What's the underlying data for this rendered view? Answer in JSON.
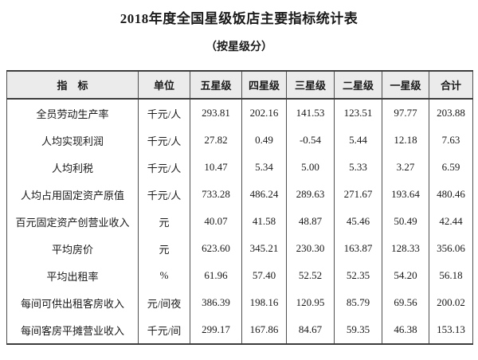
{
  "page": {
    "title": "2018年度全国星级饭店主要指标统计表",
    "subtitle": "（按星级分）"
  },
  "table": {
    "headers": [
      "指　标",
      "单位",
      "五星级",
      "四星级",
      "三星级",
      "二星级",
      "一星级",
      "合计"
    ],
    "rows": [
      {
        "indicator": "全员劳动生产率",
        "unit": "千元/人",
        "values": [
          "293.81",
          "202.16",
          "141.53",
          "123.51",
          "97.77",
          "203.88"
        ]
      },
      {
        "indicator": "人均实现利润",
        "unit": "千元/人",
        "values": [
          "27.82",
          "0.49",
          "-0.54",
          "5.44",
          "12.18",
          "7.63"
        ]
      },
      {
        "indicator": "人均利税",
        "unit": "千元/人",
        "values": [
          "10.47",
          "5.34",
          "5.00",
          "5.33",
          "3.27",
          "6.59"
        ]
      },
      {
        "indicator": "人均占用固定资产原值",
        "unit": "千元/人",
        "values": [
          "733.28",
          "486.24",
          "289.63",
          "271.67",
          "193.64",
          "480.46"
        ]
      },
      {
        "indicator": "百元固定资产创营业收入",
        "unit": "元",
        "values": [
          "40.07",
          "41.58",
          "48.87",
          "45.46",
          "50.49",
          "42.44"
        ]
      },
      {
        "indicator": "平均房价",
        "unit": "元",
        "values": [
          "623.60",
          "345.21",
          "230.30",
          "163.87",
          "128.33",
          "356.06"
        ]
      },
      {
        "indicator": "平均出租率",
        "unit": "%",
        "values": [
          "61.96",
          "57.40",
          "52.52",
          "52.35",
          "54.20",
          "56.18"
        ]
      },
      {
        "indicator": "每间可供出租客房收入",
        "unit": "元/间夜",
        "values": [
          "386.39",
          "198.16",
          "120.95",
          "85.79",
          "69.56",
          "200.02"
        ]
      },
      {
        "indicator": "每间客房平摊营业收入",
        "unit": "千元/间",
        "values": [
          "299.17",
          "167.86",
          "84.67",
          "59.35",
          "46.38",
          "153.13"
        ]
      }
    ]
  },
  "colors": {
    "header_background": "#ebebeb",
    "border_thick": "#3c3c3c",
    "border_thin": "#4f4f4f",
    "text": "#1a1a1a"
  }
}
